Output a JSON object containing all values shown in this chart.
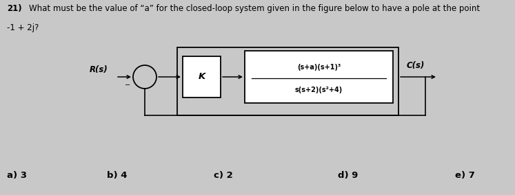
{
  "question_number": "21)",
  "question_text": "What must be the value of “a” for the closed-loop system given in the figure below to have a pole at the point",
  "question_line2": "-1 + 2j?",
  "bg_color": "#c8c8c8",
  "answers": [
    "a) 3",
    "b) 4",
    "c) 2",
    "d) 9",
    "e) 7"
  ],
  "Rs_label": "R(s)",
  "Cs_label": "C(s)",
  "K_label": "K",
  "tf_numerator": "(s+a)(s+1)³",
  "tf_denominator": "s(s+2)(s²+4)",
  "title_fontsize": 8.5,
  "label_fontsize": 8.5,
  "answer_fontsize": 9.5
}
